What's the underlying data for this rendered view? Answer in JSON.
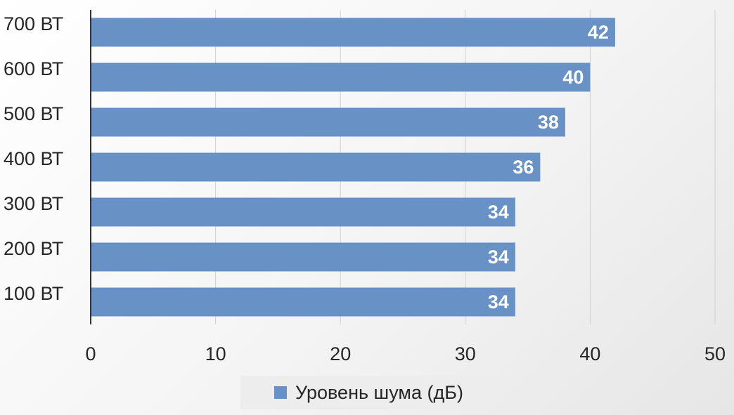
{
  "chart_data": {
    "type": "bar",
    "orientation": "horizontal",
    "categories": [
      "700 ВТ",
      "600 ВТ",
      "500 ВТ",
      "400 ВТ",
      "300 ВТ",
      "200 ВТ",
      "100 ВТ"
    ],
    "series": [
      {
        "name": "Уровень шума (дБ)",
        "values": [
          42,
          40,
          38,
          36,
          34,
          34,
          34
        ],
        "color": "#6891c6"
      }
    ],
    "xlim": [
      0,
      50
    ],
    "xticks": [
      0,
      10,
      20,
      30,
      40,
      50
    ],
    "grid": true,
    "legend": "bottom",
    "data_labels": true
  }
}
